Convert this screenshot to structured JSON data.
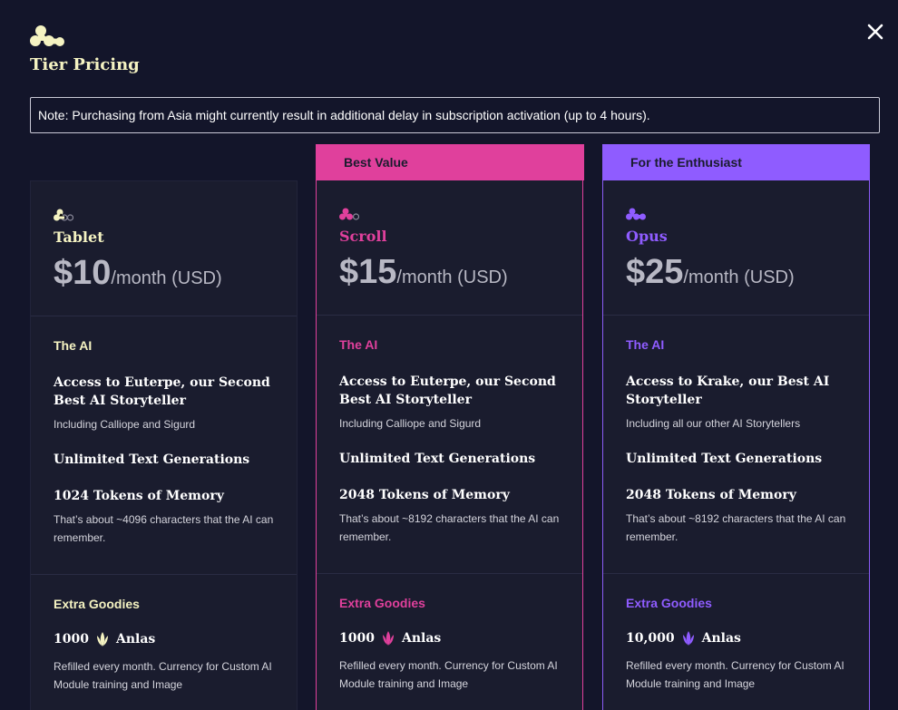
{
  "header": {
    "title": "Tier Pricing",
    "note": "Note: Purchasing from Asia might currently result in additional delay in subscription activation (up to 4 hours)."
  },
  "colors": {
    "tablet": "#f5f3c2",
    "scroll": "#e0409c",
    "opus": "#8f5cff",
    "background": "#13152a",
    "card": "#1a1c2e"
  },
  "tiers": [
    {
      "name": "Tablet",
      "banner": "",
      "price": "$10",
      "period": "/month (USD)",
      "ai_label": "The AI",
      "model": "Access to Euterpe, our Second Best AI Storyteller",
      "model_sub": "Including Calliope and Sigurd",
      "generations": "Unlimited Text Generations",
      "memory": "1024 Tokens of Memory",
      "memory_sub": "That’s about ~4096 characters that the AI can remember.",
      "extras_label": "Extra Goodies",
      "anlas_amount": "1000",
      "anlas_label": "Anlas",
      "anlas_sub": "Refilled every month. Currency for Custom AI Module training and Image"
    },
    {
      "name": "Scroll",
      "banner": "Best Value",
      "price": "$15",
      "period": "/month (USD)",
      "ai_label": "The AI",
      "model": "Access to Euterpe, our Second Best AI Storyteller",
      "model_sub": "Including Calliope and Sigurd",
      "generations": "Unlimited Text Generations",
      "memory": "2048 Tokens of Memory",
      "memory_sub": "That’s about ~8192 characters that the AI can remember.",
      "extras_label": "Extra Goodies",
      "anlas_amount": "1000",
      "anlas_label": "Anlas",
      "anlas_sub": "Refilled every month. Currency for Custom AI Module training and Image"
    },
    {
      "name": "Opus",
      "banner": "For the Enthusiast",
      "price": "$25",
      "period": "/month (USD)",
      "ai_label": "The AI",
      "model": "Access to Krake, our Best AI Storyteller",
      "model_sub": "Including all our other AI Storytellers",
      "generations": "Unlimited Text Generations",
      "memory": "2048 Tokens of Memory",
      "memory_sub": "That’s about ~8192 characters that the AI can remember.",
      "extras_label": "Extra Goodies",
      "anlas_amount": "10,000",
      "anlas_label": "Anlas",
      "anlas_sub": "Refilled every month. Currency for Custom AI Module training and Image"
    }
  ]
}
